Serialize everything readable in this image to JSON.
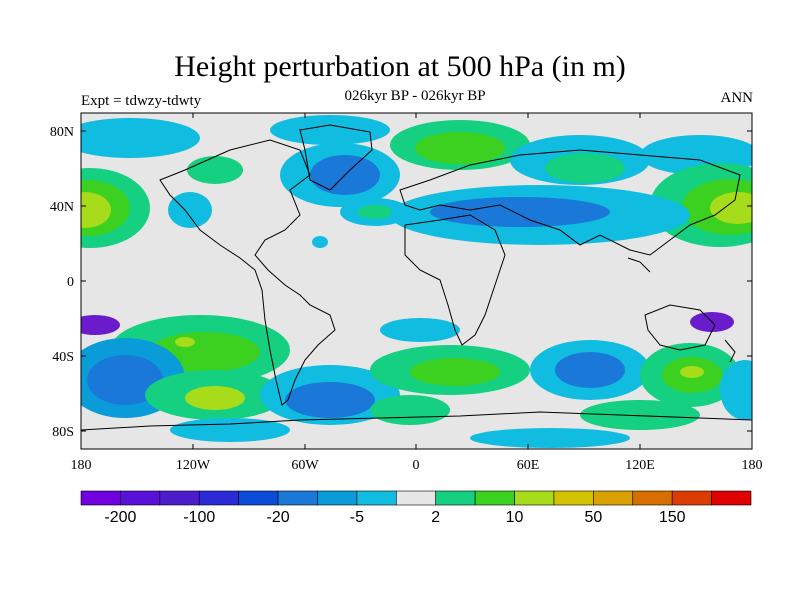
{
  "title": "Height perturbation at 500 hPa (in m)",
  "subtitle": "026kyr BP - 026kyr BP",
  "left_label": "Expt = tdwzy-tdwty",
  "right_label": "ANN",
  "lat_ticks": [
    "80N",
    "40N",
    "0",
    "40S",
    "80S"
  ],
  "lon_ticks": [
    "180",
    "120W",
    "60W",
    "0",
    "60E",
    "120E",
    "180"
  ],
  "colorbar": {
    "colors": [
      "#7000e0",
      "#5a10d8",
      "#4a1ccc",
      "#2a2ad8",
      "#0a4cd8",
      "#1a78d8",
      "#0a9cd8",
      "#10bce0",
      "#e6e6e6",
      "#14d080",
      "#3cd020",
      "#a6dc1a",
      "#d2c200",
      "#d8a000",
      "#d86e00",
      "#dc3c00",
      "#e00000"
    ],
    "labels": [
      "-200",
      "-100",
      "-20",
      "-5",
      "2",
      "10",
      "50",
      "150"
    ]
  },
  "palette": {
    "neutral": "#e6e6e6",
    "blue_light": "#10bce0",
    "blue_mid": "#0a9cd8",
    "blue_deep": "#1a78d8",
    "green": "#14d080",
    "green_deep": "#3cd020",
    "yellow_green": "#a6dc1a"
  }
}
